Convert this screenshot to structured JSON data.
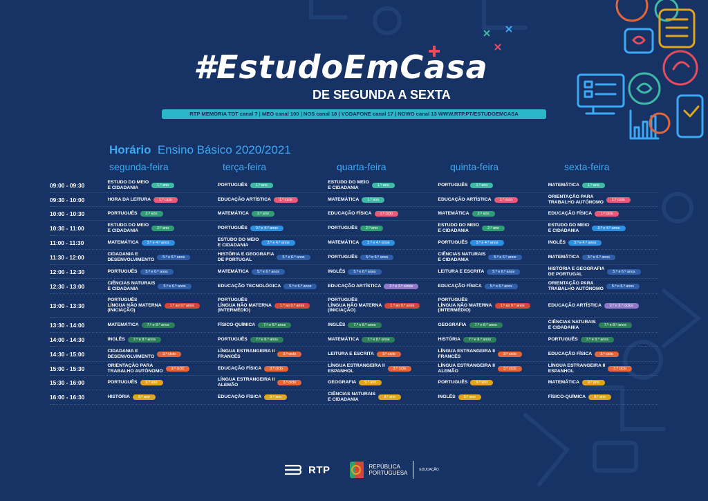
{
  "header": {
    "hashtag": "#EstudoEmCasa",
    "subtitle": "DE SEGUNDA A SEXTA",
    "channels": "RTP MEMÓRIA  TDT canal 7 | MEO canal 100 | NOS canal 18 | VODAFONE canal 17 | NOWO canal 13    WWW.RTP.PT/ESTUDOEMCASA"
  },
  "heading": {
    "bold": "Horário",
    "rest": "Ensino Básico 2020/2021"
  },
  "days": [
    "segunda-feira",
    "terça-feira",
    "quarta-feira",
    "quinta-feira",
    "sexta-feira"
  ],
  "colors": {
    "background": "#173365",
    "accent": "#3da9f5",
    "teal": "#3fb8a6",
    "pink": "#e35d78",
    "green": "#2f9e73",
    "blue": "#2d8fe0",
    "navy": "#2f5ea8",
    "purple": "#8f78c8",
    "red": "#d6453d",
    "darkgreen": "#2d7f5b",
    "orange": "#e2663b",
    "yellow": "#e0a41e"
  },
  "rows": [
    {
      "time": "09:00 - 09:30",
      "cells": [
        {
          "subject": "ESTUDO DO MEIO\nE CIDADANIA",
          "tag": "1.º ano",
          "color": "teal"
        },
        {
          "subject": "PORTUGUÊS",
          "tag": "1.º ano",
          "color": "teal"
        },
        {
          "subject": "ESTUDO DO MEIO\nE CIDADANIA",
          "tag": "1.º ano",
          "color": "teal"
        },
        {
          "subject": "PORTUGUÊS",
          "tag": "1.º ano",
          "color": "teal"
        },
        {
          "subject": "MATEMÁTICA",
          "tag": "1.º ano",
          "color": "teal"
        }
      ]
    },
    {
      "time": "09:30 - 10:00",
      "cells": [
        {
          "subject": "HORA DA LEITURA",
          "tag": "1.º ciclo",
          "color": "pink"
        },
        {
          "subject": "EDUCAÇÃO ARTÍSTICA",
          "tag": "1.º ciclo",
          "color": "pink"
        },
        {
          "subject": "MATEMÁTICA",
          "tag": "1.º ano",
          "color": "teal"
        },
        {
          "subject": "EDUCAÇÃO ARTÍSTICA",
          "tag": "1.º ciclo",
          "color": "pink"
        },
        {
          "subject": "ORIENTAÇÃO PARA\nTRABALHO AUTÓNOMO",
          "tag": "1.º ciclo",
          "color": "pink"
        }
      ]
    },
    {
      "time": "10:00 - 10:30",
      "cells": [
        {
          "subject": "PORTUGUÊS",
          "tag": "2.º ano",
          "color": "green"
        },
        {
          "subject": "MATEMÁTICA",
          "tag": "2.º ano",
          "color": "green"
        },
        {
          "subject": "EDUCAÇÃO FÍSICA",
          "tag": "1.º ciclo",
          "color": "pink"
        },
        {
          "subject": "MATEMÁTICA",
          "tag": "2.º ano",
          "color": "green"
        },
        {
          "subject": "EDUCAÇÃO FÍSICA",
          "tag": "1.º ciclo",
          "color": "pink"
        }
      ]
    },
    {
      "time": "10:30 - 11:00",
      "cells": [
        {
          "subject": "ESTUDO DO MEIO\nE CIDADANIA",
          "tag": "2.º ano",
          "color": "green"
        },
        {
          "subject": "PORTUGUÊS",
          "tag": "3.º e 4.º anos",
          "color": "blue"
        },
        {
          "subject": "PORTUGUÊS",
          "tag": "2.º ano",
          "color": "green"
        },
        {
          "subject": "ESTUDO DO MEIO\nE CIDADANIA",
          "tag": "2.º ano",
          "color": "green"
        },
        {
          "subject": "ESTUDO DO MEIO\nE CIDADANIA",
          "tag": "3.º e 4.º anos",
          "color": "blue"
        }
      ]
    },
    {
      "time": "11:00 - 11:30",
      "cells": [
        {
          "subject": "MATEMÁTICA",
          "tag": "3.º e 4.º anos",
          "color": "blue"
        },
        {
          "subject": "ESTUDO DO MEIO\nE CIDADANIA",
          "tag": "3.º e 4.º anos",
          "color": "blue"
        },
        {
          "subject": "MATEMÁTICA",
          "tag": "3.º e 4.º anos",
          "color": "blue"
        },
        {
          "subject": "PORTUGUÊS",
          "tag": "3.º e 4.º anos",
          "color": "blue"
        },
        {
          "subject": "INGLÊS",
          "tag": "3.º e 4.º anos",
          "color": "blue"
        }
      ]
    },
    {
      "time": "11:30 - 12:00",
      "cells": [
        {
          "subject": "CIDADANIA E\nDESENVOLVIMENTO",
          "tag": "5.º e 6.º anos",
          "color": "navy"
        },
        {
          "subject": "HISTÓRIA E GEOGRAFIA\nDE PORTUGAL",
          "tag": "5.º e 6.º anos",
          "color": "navy"
        },
        {
          "subject": "PORTUGUÊS",
          "tag": "5.º e 6.º anos",
          "color": "navy"
        },
        {
          "subject": "CIÊNCIAS NATURAIS\nE CIDADANIA",
          "tag": "5.º e 6.º anos",
          "color": "navy"
        },
        {
          "subject": "MATEMÁTICA",
          "tag": "5.º e 6.º anos",
          "color": "navy"
        }
      ]
    },
    {
      "time": "12:00 - 12:30",
      "cells": [
        {
          "subject": "PORTUGUÊS",
          "tag": "5.º e 6.º anos",
          "color": "navy"
        },
        {
          "subject": "MATEMÁTICA",
          "tag": "5.º e 6.º anos",
          "color": "navy"
        },
        {
          "subject": "INGLÊS",
          "tag": "5.º e 6.º anos",
          "color": "navy"
        },
        {
          "subject": "LEITURA E ESCRITA",
          "tag": "5.º e 6.º anos",
          "color": "navy"
        },
        {
          "subject": "HISTÓRIA E GEOGRAFIA\nDE PORTUGAL",
          "tag": "5.º e 6.º anos",
          "color": "navy"
        }
      ]
    },
    {
      "time": "12:30 - 13:00",
      "cells": [
        {
          "subject": "CIÊNCIAS NATURAIS\nE CIDADANIA",
          "tag": "5.º e 6.º anos",
          "color": "navy"
        },
        {
          "subject": "EDUCAÇÃO TECNOLÓGICA",
          "tag": "5.º e 6.º anos",
          "color": "navy"
        },
        {
          "subject": "EDUCAÇÃO ARTÍSTICA",
          "tag": "2.º e 3.º ciclos",
          "color": "purple"
        },
        {
          "subject": "EDUCAÇÃO FÍSICA",
          "tag": "5.º e 6.º anos",
          "color": "navy"
        },
        {
          "subject": "ORIENTAÇÃO PARA\nTRABALHO AUTÓNOMO",
          "tag": "5.º e 6.º anos",
          "color": "navy"
        }
      ]
    },
    {
      "time": "13:00 - 13:30",
      "cells": [
        {
          "subject": "PORTUGUÊS\nLÍNGUA NÃO MATERNA\n(INICIAÇÃO)",
          "tag": "1.º ao 9.º anos",
          "color": "red"
        },
        {
          "subject": "PORTUGUÊS\nLÍNGUA NÃO MATERNA\n(INTERMÉDIO)",
          "tag": "1.º ao 9.º anos",
          "color": "red"
        },
        {
          "subject": "PORTUGUÊS\nLÍNGUA NÃO MATERNA\n(INICIAÇÃO)",
          "tag": "1.º ao 9.º anos",
          "color": "red"
        },
        {
          "subject": "PORTUGUÊS\nLÍNGUA NÃO MATERNA\n(INTERMÉDIO)",
          "tag": "1.º ao 9.º anos",
          "color": "red"
        },
        {
          "subject": "EDUCAÇÃO ARTÍSTICA",
          "tag": "2.º e 3.º ciclos",
          "color": "purple"
        }
      ]
    },
    {
      "time": "13:30 - 14:00",
      "cells": [
        {
          "subject": "MATEMÁTICA",
          "tag": "7.º e 8.º anos",
          "color": "darkgreen"
        },
        {
          "subject": "FÍSICO-QUÍMICA",
          "tag": "7.º e 8.º anos",
          "color": "darkgreen"
        },
        {
          "subject": "INGLÊS",
          "tag": "7.º e 8.º anos",
          "color": "darkgreen"
        },
        {
          "subject": "GEOGRAFIA",
          "tag": "7.º e 8.º anos",
          "color": "darkgreen"
        },
        {
          "subject": "CIÊNCIAS NATURAIS\nE CIDADANIA",
          "tag": "7.º e 8.º anos",
          "color": "darkgreen"
        }
      ]
    },
    {
      "time": "14:00 - 14:30",
      "cells": [
        {
          "subject": "INGLÊS",
          "tag": "7.º e 8.º anos",
          "color": "darkgreen"
        },
        {
          "subject": "PORTUGUÊS",
          "tag": "7.º e 8.º anos",
          "color": "darkgreen"
        },
        {
          "subject": "MATEMÁTICA",
          "tag": "7.º e 8.º anos",
          "color": "darkgreen"
        },
        {
          "subject": "HISTÓRIA",
          "tag": "7.º e 8.º anos",
          "color": "darkgreen"
        },
        {
          "subject": "PORTUGUÊS",
          "tag": "7.º e 8.º anos",
          "color": "darkgreen"
        }
      ]
    },
    {
      "time": "14:30 - 15:00",
      "cells": [
        {
          "subject": "CIDADANIA E\nDESENVOLVIMENTO",
          "tag": "3.º ciclo",
          "color": "orange"
        },
        {
          "subject": "LÍNGUA ESTRANGEIRA II\nFRANCÊS",
          "tag": "3.º ciclo",
          "color": "orange"
        },
        {
          "subject": "LEITURA E ESCRITA",
          "tag": "3.º ciclo",
          "color": "orange"
        },
        {
          "subject": "LÍNGUA ESTRANGEIRA II\nFRANCÊS",
          "tag": "3.º ciclo",
          "color": "orange"
        },
        {
          "subject": "EDUCAÇÃO FÍSICA",
          "tag": "3.º ciclo",
          "color": "orange"
        }
      ]
    },
    {
      "time": "15:00 - 15:30",
      "cells": [
        {
          "subject": "ORIENTAÇÃO PARA\nTRABALHO AUTÓNOMO",
          "tag": "3.º ciclo",
          "color": "orange"
        },
        {
          "subject": "EDUCAÇÃO FÍSICA",
          "tag": "3.º ciclo",
          "color": "orange"
        },
        {
          "subject": "LÍNGUA ESTRANGEIRA II\nESPANHOL",
          "tag": "3.º ciclo",
          "color": "orange"
        },
        {
          "subject": "LÍNGUA ESTRANGEIRA II\nALEMÃO",
          "tag": "3.º ciclo",
          "color": "orange"
        },
        {
          "subject": "LÍNGUA ESTRANGEIRA II\nESPANHOL",
          "tag": "3.º ciclo",
          "color": "orange"
        }
      ]
    },
    {
      "time": "15:30 - 16:00",
      "cells": [
        {
          "subject": "PORTUGUÊS",
          "tag": "9.º ano",
          "color": "yellow"
        },
        {
          "subject": "LÍNGUA ESTRANGEIRA II\nALEMÃO",
          "tag": "3.º ciclo",
          "color": "orange"
        },
        {
          "subject": "GEOGRAFIA",
          "tag": "9.º ano",
          "color": "yellow"
        },
        {
          "subject": "PORTUGUÊS",
          "tag": "9.º ano",
          "color": "yellow"
        },
        {
          "subject": "MATEMÁTICA",
          "tag": "9.º ano",
          "color": "yellow"
        }
      ]
    },
    {
      "time": "16:00 - 16:30",
      "cells": [
        {
          "subject": "HISTÓRIA",
          "tag": "9.º ano",
          "color": "yellow"
        },
        {
          "subject": "EDUCAÇÃO FÍSICA",
          "tag": "9.º ano",
          "color": "yellow"
        },
        {
          "subject": "CIÊNCIAS NATURAIS\nE CIDADANIA",
          "tag": "9.º ano",
          "color": "yellow"
        },
        {
          "subject": "INGLÊS",
          "tag": "9.º ano",
          "color": "yellow"
        },
        {
          "subject": "FÍSICO-QUÍMICA",
          "tag": "9.º ano",
          "color": "yellow"
        }
      ]
    }
  ],
  "footer": {
    "rtp": "RTP",
    "gov": "REPÚBLICA\nPORTUGUESA",
    "ministry": "EDUCAÇÃO"
  },
  "icons": [
    "education-illustration-icon",
    "rtp-logo-icon",
    "republica-portuguesa-logo-icon"
  ]
}
